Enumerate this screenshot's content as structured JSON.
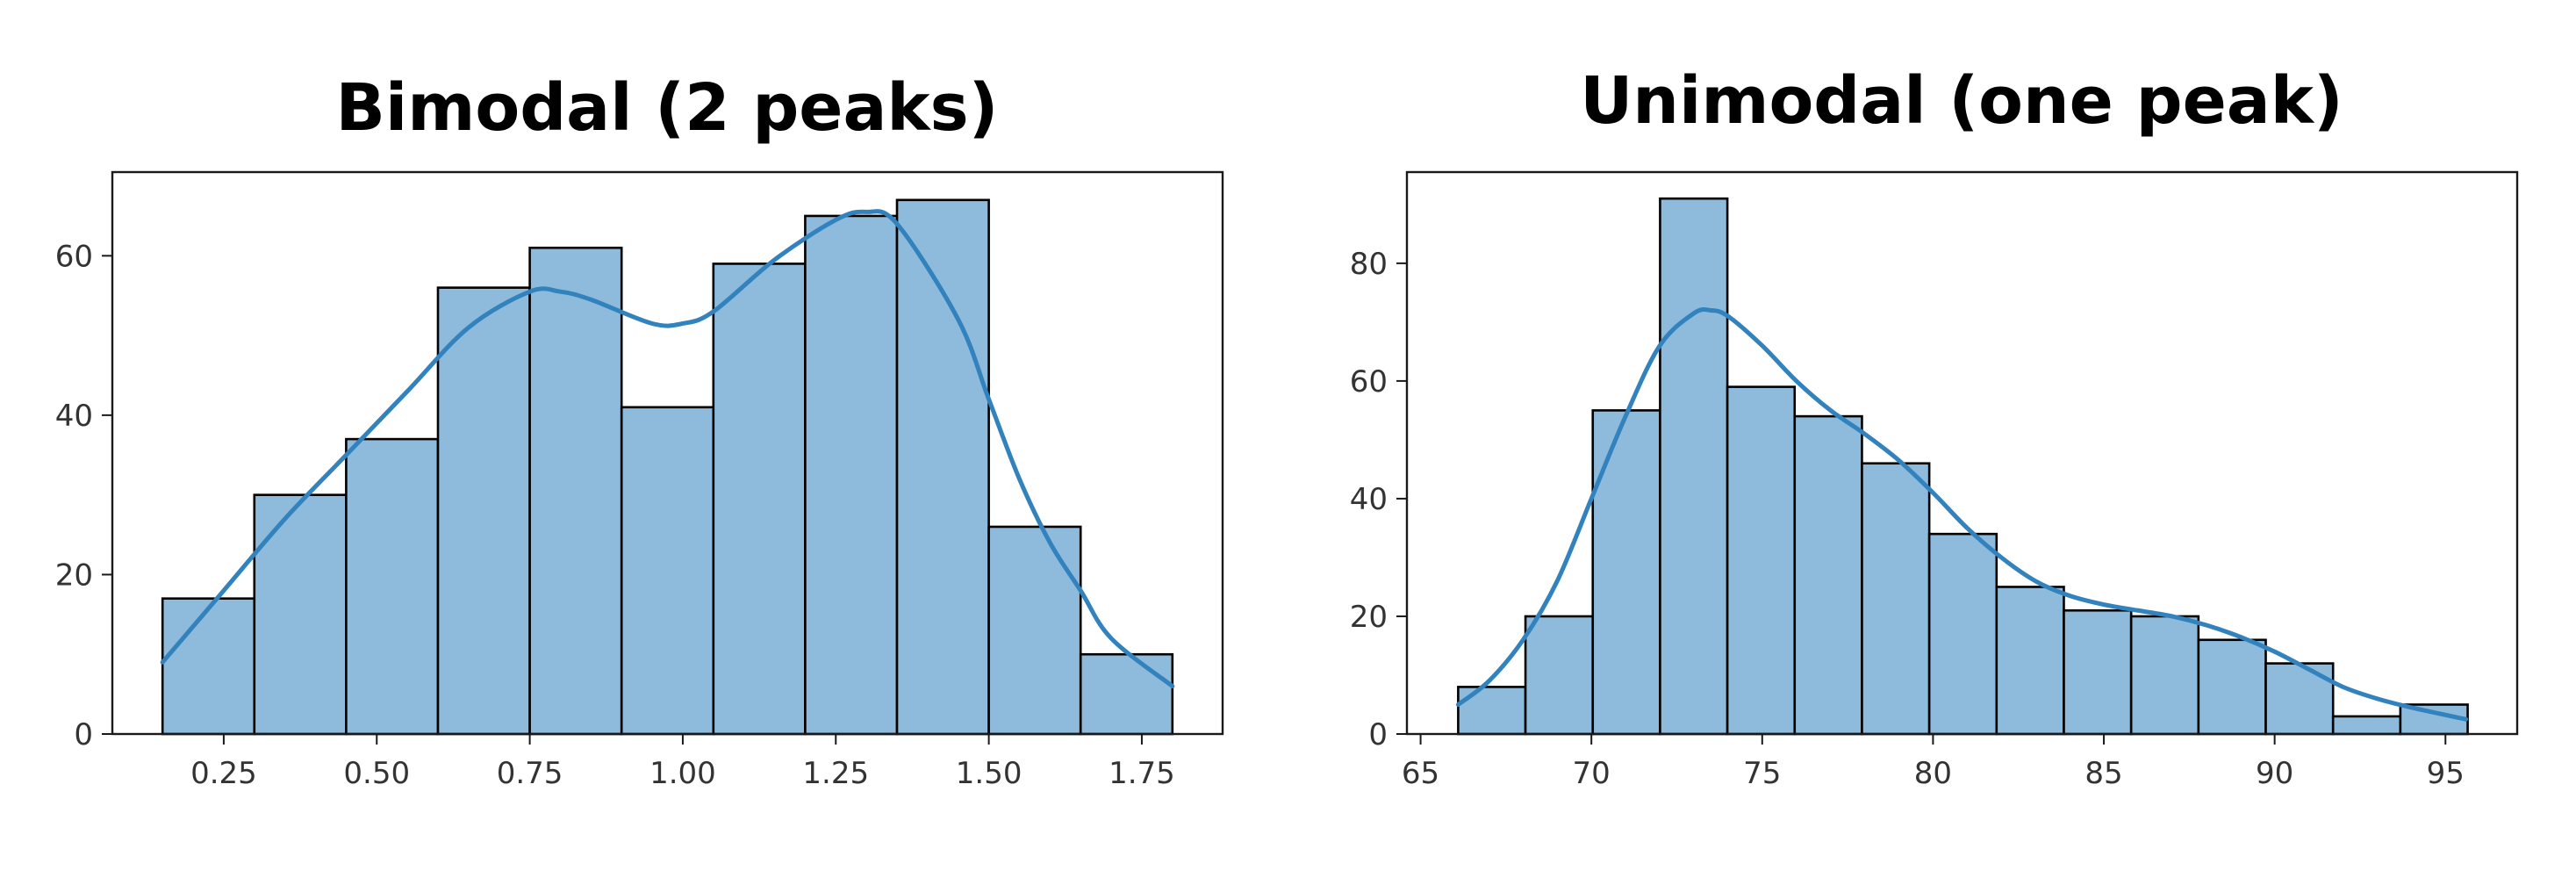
{
  "colors": {
    "bar_fill": "#8ebadb",
    "kde_line": "#3182bd",
    "edge": "#000000"
  },
  "chart_data": [
    {
      "type": "bar",
      "subtype": "histogram",
      "title": "Bimodal (2 peaks)",
      "xlabel": "",
      "ylabel": "",
      "bin_edges": [
        0.15,
        0.3,
        0.45,
        0.6,
        0.75,
        0.9,
        1.05,
        1.2,
        1.35,
        1.5,
        1.65,
        1.8
      ],
      "values": [
        17,
        30,
        37,
        56,
        61,
        41,
        59,
        65,
        67,
        26,
        10
      ],
      "xlim": [
        0.068,
        1.882
      ],
      "ylim": [
        0,
        70.5
      ],
      "xticks": [
        0.25,
        0.5,
        0.75,
        1.0,
        1.25,
        1.5,
        1.75
      ],
      "xtick_labels": [
        "0.25",
        "0.50",
        "0.75",
        "1.00",
        "1.25",
        "1.50",
        "1.75"
      ],
      "yticks": [
        0,
        20,
        40,
        60
      ],
      "ytick_labels": [
        "0",
        "20",
        "40",
        "60"
      ],
      "grid": false,
      "kde": {
        "x": [
          0.15,
          0.25,
          0.35,
          0.45,
          0.55,
          0.65,
          0.75,
          0.8,
          0.85,
          0.95,
          1.0,
          1.05,
          1.15,
          1.25,
          1.3,
          1.35,
          1.45,
          1.5,
          1.55,
          1.6,
          1.65,
          1.7,
          1.8
        ],
        "y": [
          9,
          18,
          27,
          35,
          43,
          51,
          55.5,
          55.5,
          54.5,
          51.5,
          51.5,
          53,
          59.5,
          64.5,
          65.5,
          64,
          52,
          42,
          32,
          24,
          18,
          12,
          6
        ]
      }
    },
    {
      "type": "bar",
      "subtype": "histogram",
      "title": "Unimodal (one peak)",
      "xlabel": "",
      "ylabel": "",
      "bin_edges": [
        66.1,
        68.07,
        70.04,
        72.01,
        73.98,
        75.95,
        77.92,
        79.89,
        81.86,
        83.83,
        85.8,
        87.77,
        89.74,
        91.71,
        93.68,
        95.65
      ],
      "values": [
        8,
        20,
        55,
        91,
        59,
        54,
        46,
        34,
        25,
        21,
        20,
        16,
        12,
        3,
        5
      ],
      "xlim": [
        64.6,
        97.1
      ],
      "ylim": [
        0,
        95.5
      ],
      "xticks": [
        65,
        70,
        75,
        80,
        85,
        90,
        95
      ],
      "xtick_labels": [
        "65",
        "70",
        "75",
        "80",
        "85",
        "90",
        "95"
      ],
      "yticks": [
        0,
        20,
        40,
        60,
        80
      ],
      "ytick_labels": [
        "0",
        "20",
        "40",
        "60",
        "80"
      ],
      "grid": false,
      "kde": {
        "x": [
          66.1,
          67,
          68,
          69,
          70,
          71,
          72,
          73,
          73.5,
          74,
          75,
          76,
          77,
          78,
          79,
          80,
          81,
          82,
          83,
          84,
          85,
          86,
          87,
          88,
          89,
          90,
          91,
          92,
          93,
          94,
          95.6
        ],
        "y": [
          5,
          9,
          16,
          26,
          40,
          54,
          66,
          71.5,
          72,
          71,
          66,
          60,
          55,
          51,
          46.5,
          41,
          35,
          30,
          26,
          23.5,
          22,
          21,
          20,
          18.5,
          16.5,
          14,
          11,
          8,
          6,
          4.5,
          2.5
        ]
      }
    }
  ]
}
